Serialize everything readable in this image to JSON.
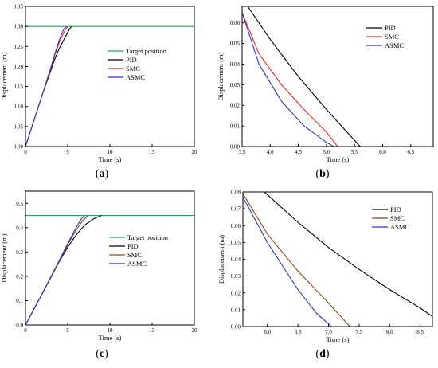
{
  "chart_data": [
    {
      "id": "a",
      "type": "line",
      "panel_label": [
        "(",
        "a",
        ")"
      ],
      "xlabel": "Time (s)",
      "ylabel": "Displacement (m)",
      "xlim": [
        0,
        20
      ],
      "ylim": [
        0,
        0.35
      ],
      "xticks": [
        "0",
        "5",
        "10",
        "15",
        "20"
      ],
      "yticks": [
        "0.00",
        "0.05",
        "0.10",
        "0.15",
        "0.20",
        "0.25",
        "0.30",
        "0.35"
      ],
      "grid": false,
      "legend_position": "center-right",
      "series": [
        {
          "name": "Target position",
          "color": "#2e9e5b",
          "x": [
            0,
            20
          ],
          "y": [
            0.3,
            0.3
          ]
        },
        {
          "name": "PID",
          "color": "#000000",
          "x": [
            0,
            1,
            2,
            3,
            3.5,
            4,
            4.5,
            5,
            5.3,
            5.5
          ],
          "y": [
            0,
            0.065,
            0.13,
            0.19,
            0.22,
            0.245,
            0.265,
            0.285,
            0.296,
            0.3
          ]
        },
        {
          "name": "SMC",
          "color": "#e8292a",
          "x": [
            0,
            1,
            2,
            3,
            3.5,
            4,
            4.5,
            4.8,
            5.1
          ],
          "y": [
            0,
            0.065,
            0.13,
            0.195,
            0.23,
            0.26,
            0.283,
            0.294,
            0.3
          ]
        },
        {
          "name": "ASMC",
          "color": "#3333cc",
          "x": [
            0,
            1,
            2,
            3,
            3.5,
            4,
            4.3,
            4.6,
            4.9
          ],
          "y": [
            0,
            0.065,
            0.13,
            0.197,
            0.233,
            0.265,
            0.282,
            0.295,
            0.3
          ]
        }
      ]
    },
    {
      "id": "b",
      "type": "line",
      "panel_label": [
        "(",
        "b",
        ")"
      ],
      "xlabel": "Time (s)",
      "ylabel": "Displacement (m)",
      "xlim": [
        3.5,
        6.9
      ],
      "ylim": [
        0,
        0.068
      ],
      "xticks": [
        "3.5",
        "4.0",
        "4.5",
        "5.0",
        "5.5",
        "6.0",
        "6.5"
      ],
      "yticks": [
        "0.00",
        "0.01",
        "0.02",
        "0.03",
        "0.04",
        "0.05",
        "0.06"
      ],
      "grid": false,
      "legend_position": "top-right",
      "series": [
        {
          "name": "PID",
          "color": "#000000",
          "x": [
            3.6,
            4.0,
            4.5,
            5.0,
            5.3,
            5.6
          ],
          "y": [
            0.068,
            0.052,
            0.034,
            0.018,
            0.009,
            0.0
          ]
        },
        {
          "name": "SMC",
          "color": "#e8292a",
          "x": [
            3.5,
            3.8,
            4.2,
            4.6,
            5.0,
            5.2
          ],
          "y": [
            0.065,
            0.045,
            0.03,
            0.018,
            0.007,
            0.0
          ]
        },
        {
          "name": "ASMC",
          "color": "#3333cc",
          "x": [
            3.5,
            3.8,
            4.2,
            4.6,
            5.0,
            5.13
          ],
          "y": [
            0.065,
            0.04,
            0.022,
            0.01,
            0.002,
            0.0
          ]
        }
      ]
    },
    {
      "id": "c",
      "type": "line",
      "panel_label": [
        "(",
        "c",
        ")"
      ],
      "xlabel": "Time (s)",
      "ylabel": "Displacement (m)",
      "xlim": [
        0,
        20
      ],
      "ylim": [
        0,
        0.55
      ],
      "xticks": [
        "0",
        "5",
        "10",
        "15",
        "20"
      ],
      "yticks": [
        "0.0",
        "0.1",
        "0.2",
        "0.3",
        "0.4",
        "0.5"
      ],
      "grid": false,
      "legend_position": "center-right",
      "series": [
        {
          "name": "Target position",
          "color": "#2e9e5b",
          "x": [
            0,
            20
          ],
          "y": [
            0.45,
            0.45
          ]
        },
        {
          "name": "PID",
          "color": "#000000",
          "x": [
            0,
            2,
            4,
            5,
            6,
            7,
            8,
            9
          ],
          "y": [
            0,
            0.13,
            0.26,
            0.32,
            0.37,
            0.41,
            0.435,
            0.45
          ]
        },
        {
          "name": "SMC",
          "color": "#8b4513",
          "x": [
            0,
            2,
            4,
            5,
            6,
            6.8,
            7.4
          ],
          "y": [
            0,
            0.13,
            0.26,
            0.33,
            0.39,
            0.43,
            0.45
          ]
        },
        {
          "name": "ASMC",
          "color": "#3333cc",
          "x": [
            0,
            2,
            4,
            5,
            6,
            6.6,
            7.0
          ],
          "y": [
            0,
            0.13,
            0.265,
            0.335,
            0.4,
            0.435,
            0.45
          ]
        }
      ]
    },
    {
      "id": "d",
      "type": "line",
      "panel_label": [
        "(",
        "d",
        ")"
      ],
      "xlabel": "Time (s)",
      "ylabel": "Displacement (m)",
      "xlim": [
        5.6,
        8.7
      ],
      "ylim": [
        0,
        0.08
      ],
      "xticks": [
        "6.0",
        "6.5",
        "7.0",
        "7.5",
        "8.0",
        "8.5"
      ],
      "yticks": [
        "0.00",
        "0.01",
        "0.02",
        "0.03",
        "0.04",
        "0.05",
        "0.06",
        "0.07",
        "0.08"
      ],
      "grid": false,
      "legend_position": "top-right",
      "series": [
        {
          "name": "PID",
          "color": "#000000",
          "x": [
            5.95,
            6.5,
            7.0,
            7.5,
            8.0,
            8.5,
            8.7
          ],
          "y": [
            0.08,
            0.062,
            0.047,
            0.034,
            0.022,
            0.011,
            0.006
          ]
        },
        {
          "name": "SMC",
          "color": "#8b4513",
          "x": [
            5.6,
            6.0,
            6.5,
            7.0,
            7.35
          ],
          "y": [
            0.079,
            0.055,
            0.033,
            0.014,
            0.0
          ]
        },
        {
          "name": "ASMC",
          "color": "#3333cc",
          "x": [
            5.6,
            6.0,
            6.5,
            6.8,
            7.05
          ],
          "y": [
            0.077,
            0.05,
            0.022,
            0.008,
            0.0
          ]
        }
      ]
    }
  ]
}
